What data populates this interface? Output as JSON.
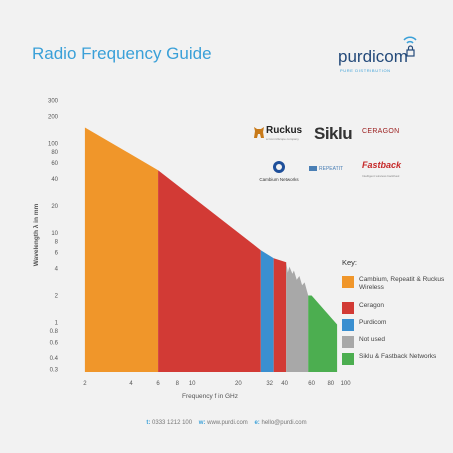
{
  "title": "Radio Frequency Guide",
  "brand": {
    "name": "purdicom",
    "tagline": "PURE DISTRIBUTION"
  },
  "vendors": {
    "ruckus": {
      "name": "Ruckus",
      "sub": "a CommScope company"
    },
    "siklu": "Siklu",
    "ceragon": "CERAGON",
    "cambium": "Cambium Networks",
    "repeatit": "REPEATIT",
    "fastback": {
      "name": "Fastback",
      "sub": "Intelligent wireless backhaul"
    }
  },
  "legend": {
    "title": "Key:",
    "items": [
      {
        "label": "Cambium, Repeatit & Ruckus Wireless",
        "color": "#f0962a"
      },
      {
        "label": "Ceragon",
        "color": "#d23a35"
      },
      {
        "label": "Purdicom",
        "color": "#3a8fd0"
      },
      {
        "label": "Not used",
        "color": "#a8a8a8"
      },
      {
        "label": "Siklu & Fastback Networks",
        "color": "#4cae50"
      }
    ]
  },
  "footer": {
    "tel_label": "t:",
    "tel": "0333 1212 100",
    "web_label": "w:",
    "web": "www.purdi.com",
    "email_label": "e:",
    "email": "hello@purdi.com"
  },
  "chart_data": {
    "type": "area",
    "title": "Radio Frequency Guide",
    "xlabel": "Frequency f in GHz",
    "ylabel": "Wavelength λ in mm",
    "xscale": "log",
    "yscale": "log",
    "xlim": [
      1.6,
      110
    ],
    "ylim": [
      0.28,
      320
    ],
    "x_ticks": [
      2,
      4,
      6,
      8,
      10,
      20,
      32,
      40,
      60,
      80,
      100
    ],
    "y_ticks": [
      0.3,
      0.4,
      0.6,
      0.8,
      1.0,
      2,
      4,
      6,
      8,
      10,
      20,
      40,
      60,
      80,
      100,
      200,
      300
    ],
    "grid": false,
    "legend_position": "right",
    "series": [
      {
        "name": "Cambium, Repeatit & Ruckus Wireless",
        "color": "#f0962a",
        "x_range": [
          2,
          6
        ],
        "top": [
          [
            2,
            150
          ],
          [
            6,
            50
          ]
        ]
      },
      {
        "name": "Ceragon",
        "color": "#d23a35",
        "x_range": [
          6,
          28
        ],
        "top": [
          [
            6,
            50
          ],
          [
            28,
            6.4
          ]
        ]
      },
      {
        "name": "Purdicom",
        "color": "#3a8fd0",
        "x_range": [
          28,
          34
        ],
        "top": [
          [
            28,
            6.4
          ],
          [
            34,
            5.2
          ]
        ]
      },
      {
        "name": "Ceragon",
        "color": "#d23a35",
        "x_range": [
          34,
          41
        ],
        "top": [
          [
            34,
            5.2
          ],
          [
            41,
            4.7
          ]
        ]
      },
      {
        "name": "Not used",
        "color": "#a8a8a8",
        "x_range": [
          41,
          57
        ],
        "top": [
          [
            41,
            4.7
          ],
          [
            42,
            3.6
          ],
          [
            43,
            4.2
          ],
          [
            45,
            3.5
          ],
          [
            46,
            3.8
          ],
          [
            48,
            3.0
          ],
          [
            50,
            3.3
          ],
          [
            52,
            2.6
          ],
          [
            54,
            2.8
          ],
          [
            57,
            2.0
          ]
        ]
      },
      {
        "name": "Siklu & Fastback Networks",
        "color": "#4cae50",
        "x_range": [
          57,
          88
        ],
        "top": [
          [
            57,
            2.0
          ],
          [
            60,
            2.0
          ],
          [
            88,
            0.95
          ]
        ]
      }
    ]
  }
}
